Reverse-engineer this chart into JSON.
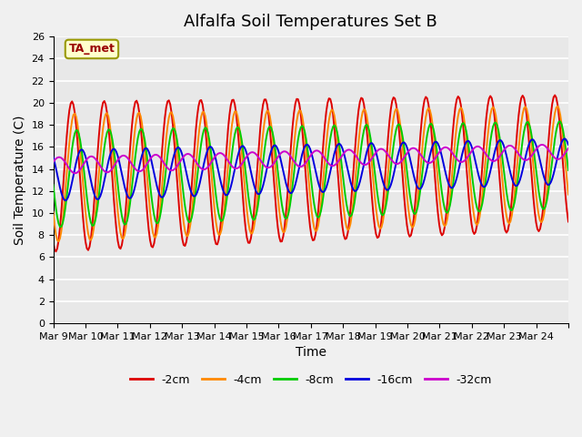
{
  "title": "Alfalfa Soil Temperatures Set B",
  "xlabel": "Time",
  "ylabel": "Soil Temperature (C)",
  "annotation": "TA_met",
  "ylim": [
    0,
    26
  ],
  "yticks": [
    0,
    2,
    4,
    6,
    8,
    10,
    12,
    14,
    16,
    18,
    20,
    22,
    24,
    26
  ],
  "xtick_positions": [
    0,
    1,
    2,
    3,
    4,
    5,
    6,
    7,
    8,
    9,
    10,
    11,
    12,
    13,
    14,
    15,
    16
  ],
  "xtick_labels": [
    "Mar 9",
    "Mar 10",
    "Mar 11",
    "Mar 12",
    "Mar 13",
    "Mar 14",
    "Mar 15",
    "Mar 16",
    "Mar 17",
    "Mar 18",
    "Mar 19",
    "Mar 20",
    "Mar 21",
    "Mar 22",
    "Mar 23",
    "Mar 24",
    ""
  ],
  "series_colors": [
    "#dd0000",
    "#ff8800",
    "#00cc00",
    "#0000dd",
    "#cc00cc"
  ],
  "series_names": [
    "-2cm",
    "-4cm",
    "-8cm",
    "-16cm",
    "-32cm"
  ],
  "fig_bg_color": "#f0f0f0",
  "plot_bg_color": "#e8e8e8",
  "title_fontsize": 13,
  "axis_label_fontsize": 10,
  "tick_fontsize": 8,
  "legend_fontsize": 9,
  "grid_color": "#ffffff",
  "n_days": 16,
  "pts_per_day": 24,
  "phase_shift": [
    0.0,
    0.08,
    0.15,
    0.3,
    0.6
  ],
  "amplitude": [
    6.8,
    5.8,
    4.4,
    2.3,
    0.75
  ],
  "depth_mean_offset": [
    0.3,
    0.2,
    0.1,
    0.4,
    1.3
  ],
  "mean_base": 13.0,
  "mean_trend": 0.08,
  "amp_decay": 0.1,
  "peak_phase": 0.33
}
